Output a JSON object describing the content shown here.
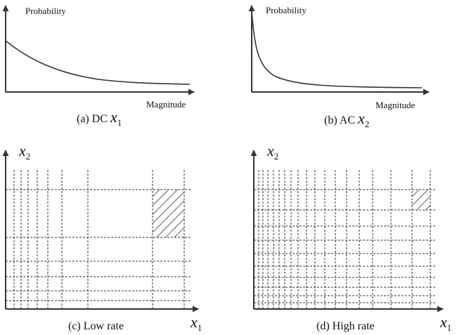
{
  "panel_a": {
    "ylabel": "Probability",
    "xlabel": "Magnitude",
    "caption": "(a) DC ",
    "var": "x",
    "sub": "1"
  },
  "panel_b": {
    "ylabel": "Probability",
    "xlabel": "Magnitude",
    "caption": "(b) AC ",
    "var": "x",
    "sub": "2"
  },
  "panel_c": {
    "caption": "(c) Low rate",
    "y_var": "x",
    "y_sub": "2",
    "x_var": "x",
    "x_sub": "1"
  },
  "panel_d": {
    "caption": "(d) High rate",
    "y_var": "x",
    "y_sub": "2",
    "x_var": "x",
    "x_sub": "1"
  },
  "colors": {
    "ink": "#333333",
    "grid": "#333333"
  }
}
